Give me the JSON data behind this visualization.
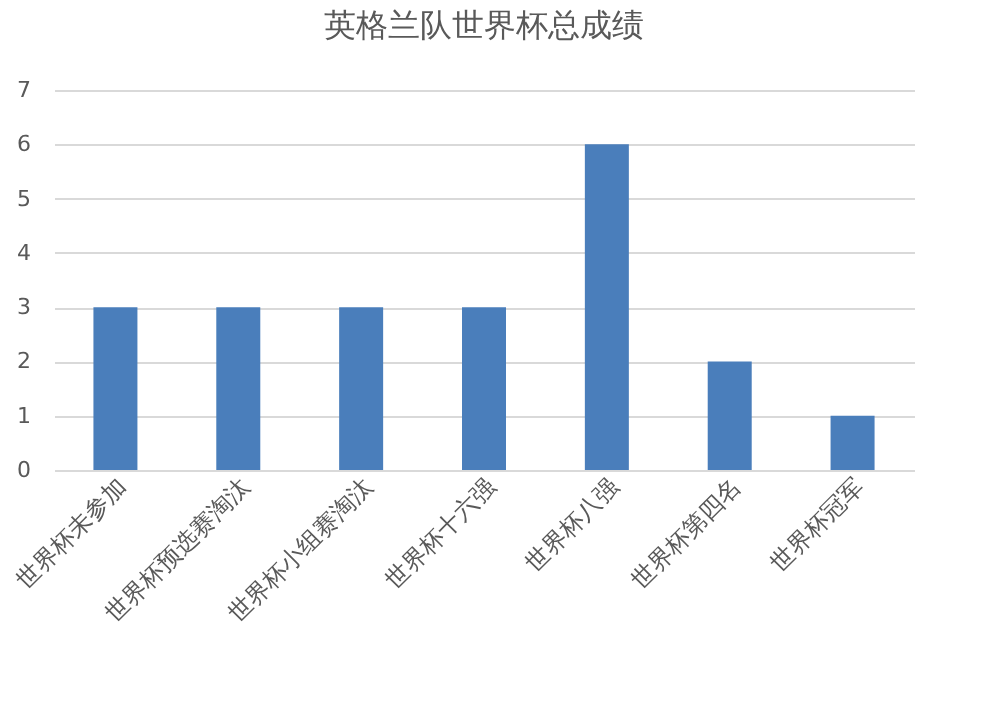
{
  "chart_data": {
    "type": "bar",
    "title": "英格兰队世界杯总成绩",
    "categories": [
      "世界杯未参加",
      "世界杯预选赛淘汰",
      "世界杯小组赛淘汰",
      "世界杯十六强",
      "世界杯八强",
      "世界杯第四名",
      "世界杯冠军"
    ],
    "values": [
      3,
      3,
      3,
      3,
      6,
      2,
      1
    ],
    "color": "#4a7ebb",
    "ylim": [
      0,
      7
    ],
    "yticks": [
      0,
      1,
      2,
      3,
      4,
      5,
      6,
      7
    ],
    "grid": "y"
  }
}
